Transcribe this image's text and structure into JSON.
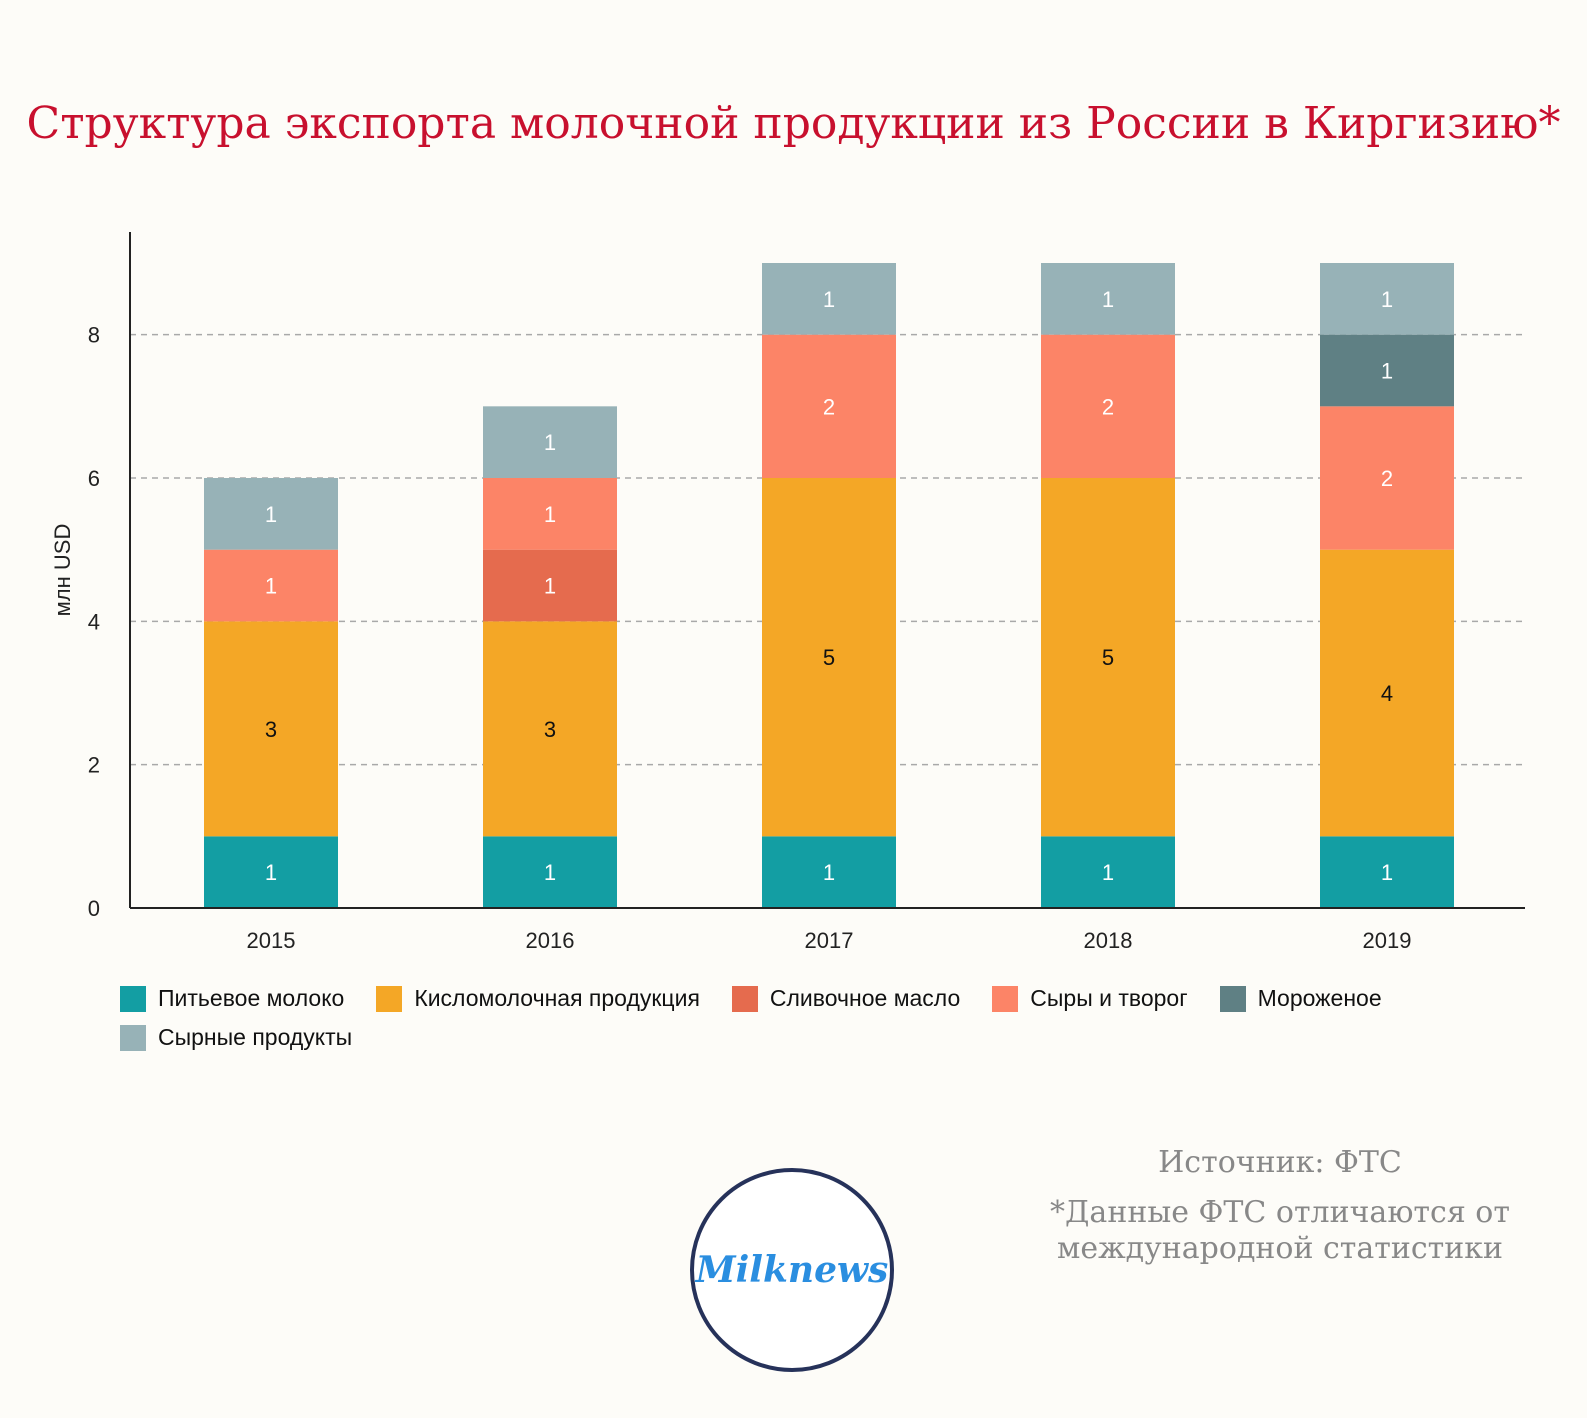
{
  "title": "Структура экспорта молочной продукции из России в Киргизию*",
  "source": "Источник: ФТС",
  "note_lines": [
    "*Данные ФТС отличаются от",
    "международной статистики"
  ],
  "logo_text": "Milknews",
  "chart_data": {
    "type": "bar",
    "stacked": true,
    "categories": [
      "2015",
      "2016",
      "2017",
      "2018",
      "2019"
    ],
    "ylabel": "млн USD",
    "xlabel": "",
    "ylim": [
      0,
      9
    ],
    "yticks": [
      0,
      2,
      4,
      6,
      8
    ],
    "grid": true,
    "legend_position": "bottom",
    "series": [
      {
        "name": "Питьевое молоко",
        "color": "#139ea3",
        "label_color": "#ffffff",
        "values": [
          1,
          1,
          1,
          1,
          1
        ]
      },
      {
        "name": "Кисломолочная продукция",
        "color": "#f4a726",
        "label_color": "#111111",
        "values": [
          3,
          3,
          5,
          5,
          4
        ]
      },
      {
        "name": "Сливочное масло",
        "color": "#e56b4e",
        "label_color": "#ffffff",
        "values": [
          0,
          1,
          0,
          0,
          0
        ]
      },
      {
        "name": "Сыры и творог",
        "color": "#fc8467",
        "label_color": "#ffffff",
        "values": [
          1,
          1,
          2,
          2,
          2
        ]
      },
      {
        "name": "Мороженое",
        "color": "#5f8084",
        "label_color": "#ffffff",
        "values": [
          0,
          0,
          0,
          0,
          1
        ]
      },
      {
        "name": "Сырные продукты",
        "color": "#97b2b7",
        "label_color": "#ffffff",
        "values": [
          1,
          1,
          1,
          1,
          1
        ]
      }
    ]
  }
}
